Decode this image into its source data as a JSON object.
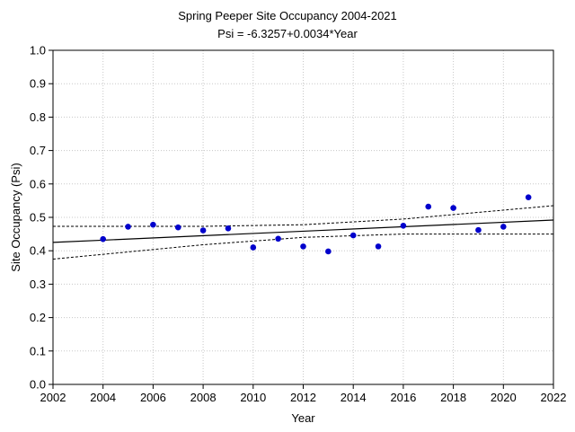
{
  "chart_data": {
    "type": "scatter",
    "title": "Spring Peeper Site Occupancy 2004-2021",
    "subtitle": "Psi = -6.3257+0.0034*Year",
    "xlabel": "Year",
    "ylabel": "Site Occupancy (Psi)",
    "xlim": [
      2002,
      2022
    ],
    "ylim": [
      0.0,
      1.0
    ],
    "xticks": [
      2002,
      2004,
      2006,
      2008,
      2010,
      2012,
      2014,
      2016,
      2018,
      2020,
      2022
    ],
    "yticks": [
      0.0,
      0.1,
      0.2,
      0.3,
      0.4,
      0.5,
      0.6,
      0.7,
      0.8,
      0.9,
      1.0
    ],
    "ytick_labels": [
      "0.0",
      "0.1",
      "0.2",
      "0.3",
      "0.4",
      "0.5",
      "0.6",
      "0.7",
      "0.8",
      "0.9",
      "1.0"
    ],
    "grid": true,
    "point_color": "#0000cc",
    "line_color": "#000000",
    "points": {
      "x": [
        2004,
        2005,
        2006,
        2007,
        2008,
        2009,
        2010,
        2011,
        2012,
        2013,
        2014,
        2015,
        2016,
        2017,
        2018,
        2019,
        2020,
        2021
      ],
      "y": [
        0.435,
        0.472,
        0.478,
        0.47,
        0.461,
        0.467,
        0.41,
        0.436,
        0.413,
        0.398,
        0.446,
        0.413,
        0.475,
        0.532,
        0.528,
        0.462,
        0.472,
        0.56
      ]
    },
    "fit_line": {
      "x": [
        2002,
        2022
      ],
      "y": [
        0.425,
        0.492
      ]
    },
    "confidence_band": {
      "upper": {
        "x": [
          2002,
          2008,
          2012,
          2016,
          2022
        ],
        "y": [
          0.473,
          0.473,
          0.478,
          0.495,
          0.535
        ]
      },
      "lower": {
        "x": [
          2002,
          2008,
          2012,
          2016,
          2022
        ],
        "y": [
          0.375,
          0.418,
          0.44,
          0.45,
          0.45
        ]
      }
    }
  }
}
